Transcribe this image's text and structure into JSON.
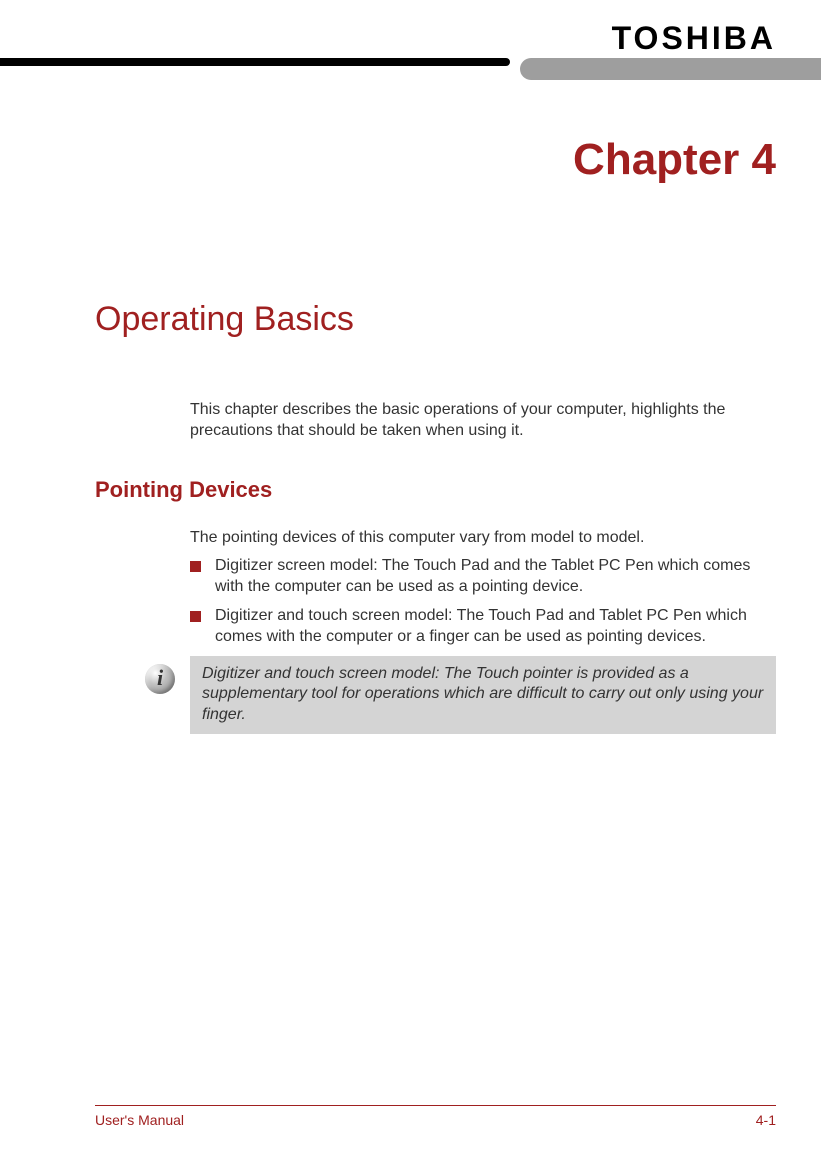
{
  "brand": {
    "logo_text": "TOSHIBA"
  },
  "colors": {
    "accent": "#a02020",
    "header_black": "#000000",
    "header_gray": "#9e9e9e",
    "info_bg": "#d4d4d4",
    "body_text": "#333333",
    "background": "#ffffff"
  },
  "chapter": {
    "number_label": "Chapter 4",
    "title": "Operating Basics"
  },
  "intro": {
    "text": "This chapter describes the basic operations of your computer, highlights the precautions that should be taken when using it."
  },
  "section": {
    "heading": "Pointing Devices",
    "lead": "The pointing devices of this computer vary from model to model.",
    "bullets": [
      "Digitizer screen model: The Touch Pad and the Tablet PC Pen which comes with the computer can be used as a pointing device.",
      "Digitizer and touch screen model: The Touch Pad and Tablet PC Pen which comes with the computer or a finger can be used as pointing devices."
    ]
  },
  "infobox": {
    "icon_glyph": "i",
    "text": "Digitizer and touch screen model: The Touch pointer is provided as a supplementary tool for operations which are difficult to carry out only using your finger."
  },
  "footer": {
    "left": "User's Manual",
    "right": "4-1"
  }
}
